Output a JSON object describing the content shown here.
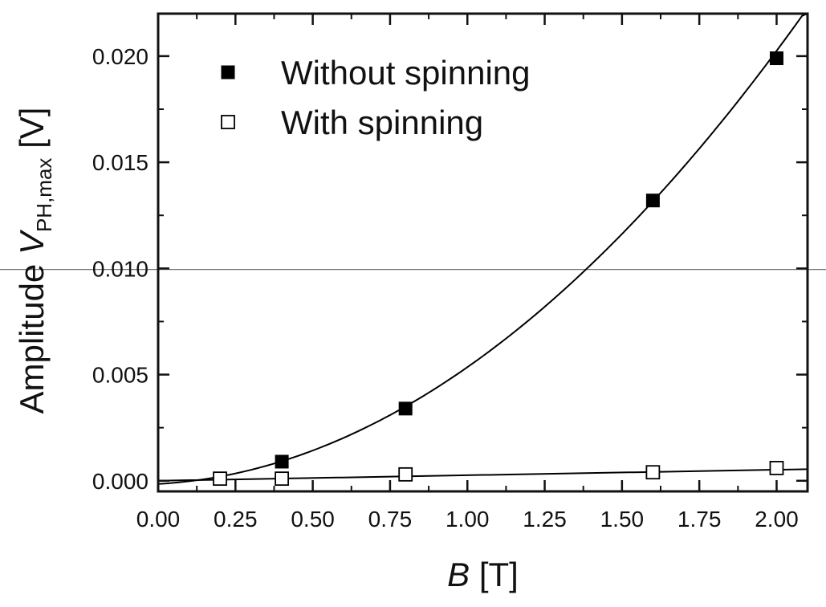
{
  "chart_data": {
    "type": "scatter",
    "title": "",
    "xlabel": {
      "italic": "B",
      "rest": " [T]"
    },
    "ylabel": {
      "prefix": "Amplitude ",
      "italic": "V",
      "subscript": "PH,max",
      "suffix": " [V]"
    },
    "xlim": [
      0.0,
      2.1
    ],
    "ylim": [
      -0.0005,
      0.022
    ],
    "xticks": [
      0.0,
      0.25,
      0.5,
      0.75,
      1.0,
      1.25,
      1.5,
      1.75,
      2.0
    ],
    "xtick_labels": [
      "0.00",
      "0.25",
      "0.50",
      "0.75",
      "1.00",
      "1.25",
      "1.50",
      "1.75",
      "2.00"
    ],
    "yticks": [
      0.0,
      0.005,
      0.01,
      0.015,
      0.02
    ],
    "ytick_labels": [
      "0.000",
      "0.005",
      "0.010",
      "0.015",
      "0.020"
    ],
    "reference_line_y": 0.00995,
    "series": [
      {
        "name": "Without spinning",
        "marker": "filled-square",
        "x": [
          0.2,
          0.4,
          0.8,
          1.6,
          2.0
        ],
        "y": [
          0.0001,
          0.0009,
          0.0034,
          0.0132,
          0.0199
        ],
        "fit": {
          "form": "quadratic",
          "coeffs": [
            -0.00015,
            0.0008,
            0.0047
          ]
        }
      },
      {
        "name": "With spinning",
        "marker": "open-square",
        "x": [
          0.2,
          0.4,
          0.8,
          1.6,
          2.0
        ],
        "y": [
          0.0001,
          0.0001,
          0.0003,
          0.0004,
          0.0006
        ],
        "fit": {
          "form": "linear",
          "coeffs": [
            0.0,
            0.00026
          ]
        }
      }
    ],
    "legend": {
      "position": "top-left"
    }
  },
  "colors": {
    "axis": "#111111",
    "marker": "#000000",
    "reference_line": "#777777"
  }
}
